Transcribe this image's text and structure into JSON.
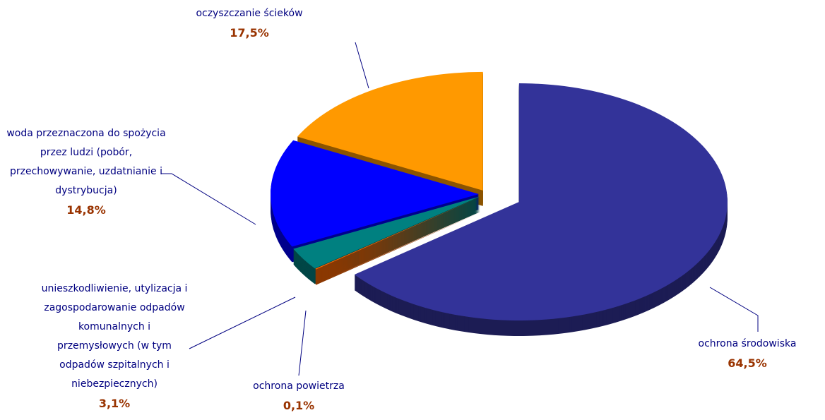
{
  "chart_data": {
    "type": "pie",
    "categories": [
      "ochrona środowiska",
      "ochrona powietrza",
      "unieszkodliwienie, utylizacja i zagospodarowanie odpadów komunalnych i przemysłowych (w tym odpadów szpitalnych i niebezpiecznych)",
      "woda przeznaczona do spożycia przez ludzi (pobór, przechowywanie, uzdatnianie i dystrybucja)",
      "oczyszczanie ścieków"
    ],
    "values": [
      64.5,
      0.1,
      3.1,
      14.8,
      17.5
    ],
    "value_labels": [
      "64,5%",
      "0,1%",
      "3,1%",
      "14,8%",
      "17,5%"
    ],
    "colors": [
      "#333399",
      "#ff6600",
      "#008080",
      "#0000ff",
      "#ff9900"
    ]
  }
}
